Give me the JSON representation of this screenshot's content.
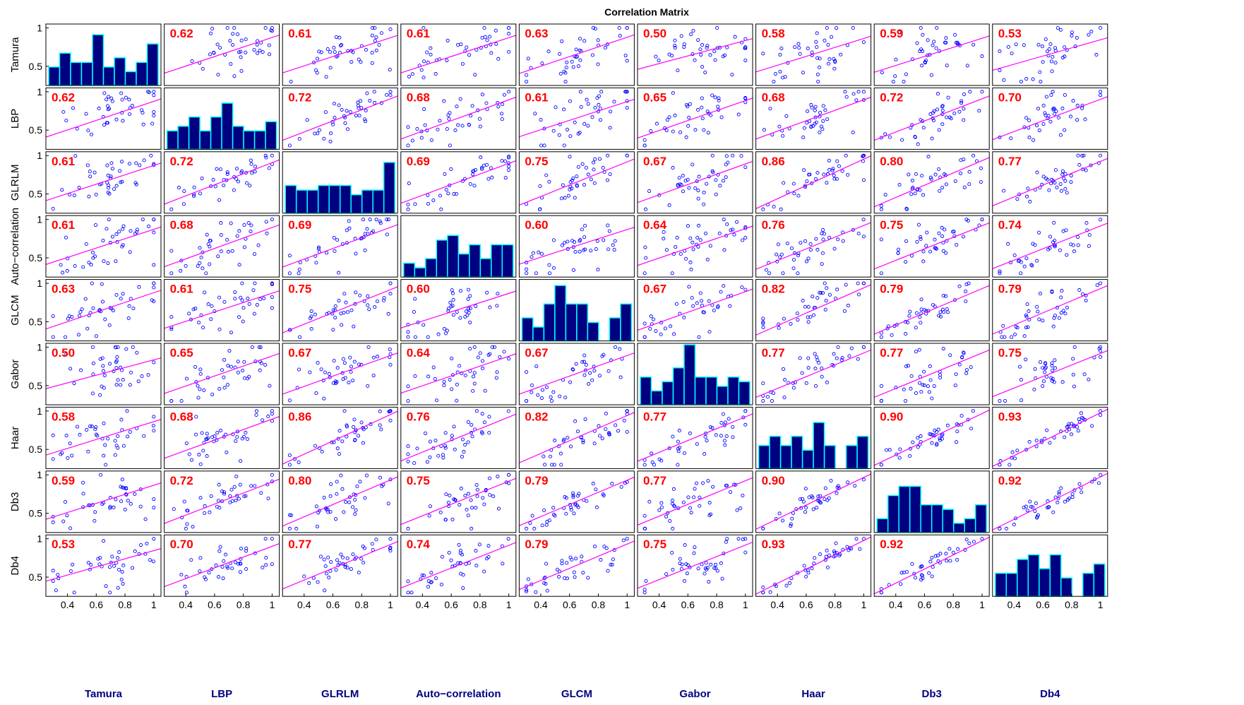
{
  "chart_data": {
    "type": "scatter",
    "title": "Correlation Matrix",
    "variables": [
      "Tamura",
      "LBP",
      "GLRLM",
      "Auto−correlation",
      "GLCM",
      "Gabor",
      "Haar",
      "Db3",
      "Db4"
    ],
    "correlations": [
      [
        "",
        "0.62",
        "0.61",
        "0.61",
        "0.63",
        "0.50",
        "0.58",
        "0.59",
        "0.53"
      ],
      [
        "0.62",
        "",
        "0.72",
        "0.68",
        "0.61",
        "0.65",
        "0.68",
        "0.72",
        "0.70"
      ],
      [
        "0.61",
        "0.72",
        "",
        "0.69",
        "0.75",
        "0.67",
        "0.86",
        "0.80",
        "0.77"
      ],
      [
        "0.61",
        "0.68",
        "0.69",
        "",
        "0.60",
        "0.64",
        "0.76",
        "0.75",
        "0.74"
      ],
      [
        "0.63",
        "0.61",
        "0.75",
        "0.60",
        "",
        "0.67",
        "0.82",
        "0.79",
        "0.79"
      ],
      [
        "0.50",
        "0.65",
        "0.67",
        "0.64",
        "0.67",
        "",
        "0.77",
        "0.77",
        "0.75"
      ],
      [
        "0.58",
        "0.68",
        "0.86",
        "0.76",
        "0.82",
        "0.77",
        "",
        "0.90",
        "0.93"
      ],
      [
        "0.59",
        "0.72",
        "0.80",
        "0.75",
        "0.79",
        "0.77",
        "0.90",
        "",
        "0.92"
      ],
      [
        "0.53",
        "0.70",
        "0.77",
        "0.74",
        "0.79",
        "0.75",
        "0.93",
        "0.92",
        ""
      ]
    ],
    "axis_range": [
      0.25,
      1.05
    ],
    "row_ticks": [
      "0.5",
      "1"
    ],
    "col_ticks": [
      "0.4",
      "0.6",
      "0.8",
      "1"
    ],
    "histograms": [
      [
        0.4,
        0.7,
        0.5,
        0.5,
        1.1,
        0.4,
        0.6,
        0.3,
        0.5,
        0.9
      ],
      [
        0.4,
        0.5,
        0.7,
        0.4,
        0.7,
        1.0,
        0.5,
        0.4,
        0.4,
        0.6
      ],
      [
        0.6,
        0.5,
        0.5,
        0.6,
        0.6,
        0.6,
        0.4,
        0.5,
        0.5,
        1.1
      ],
      [
        0.3,
        0.2,
        0.4,
        0.8,
        0.9,
        0.5,
        0.7,
        0.4,
        0.7,
        0.7
      ],
      [
        0.5,
        0.3,
        0.8,
        1.2,
        0.8,
        0.8,
        0.4,
        0.0,
        0.5,
        0.8
      ],
      [
        0.6,
        0.3,
        0.5,
        0.8,
        1.3,
        0.6,
        0.6,
        0.4,
        0.6,
        0.5
      ],
      [
        0.5,
        0.7,
        0.5,
        0.7,
        0.4,
        1.0,
        0.5,
        0.0,
        0.5,
        0.7
      ],
      [
        0.3,
        0.8,
        1.0,
        1.0,
        0.6,
        0.6,
        0.5,
        0.2,
        0.3,
        0.6
      ],
      [
        0.5,
        0.5,
        0.8,
        0.9,
        0.6,
        0.9,
        0.4,
        0.0,
        0.5,
        0.7
      ]
    ],
    "n_points": 40,
    "colors": {
      "points": "#0000ff",
      "fit_line": "#ff00ff",
      "corr_text": "#ff0000",
      "hist_fill": "#000080",
      "hist_edge": "#00ffff",
      "col_label": "#000080",
      "frame": "#000000"
    }
  }
}
